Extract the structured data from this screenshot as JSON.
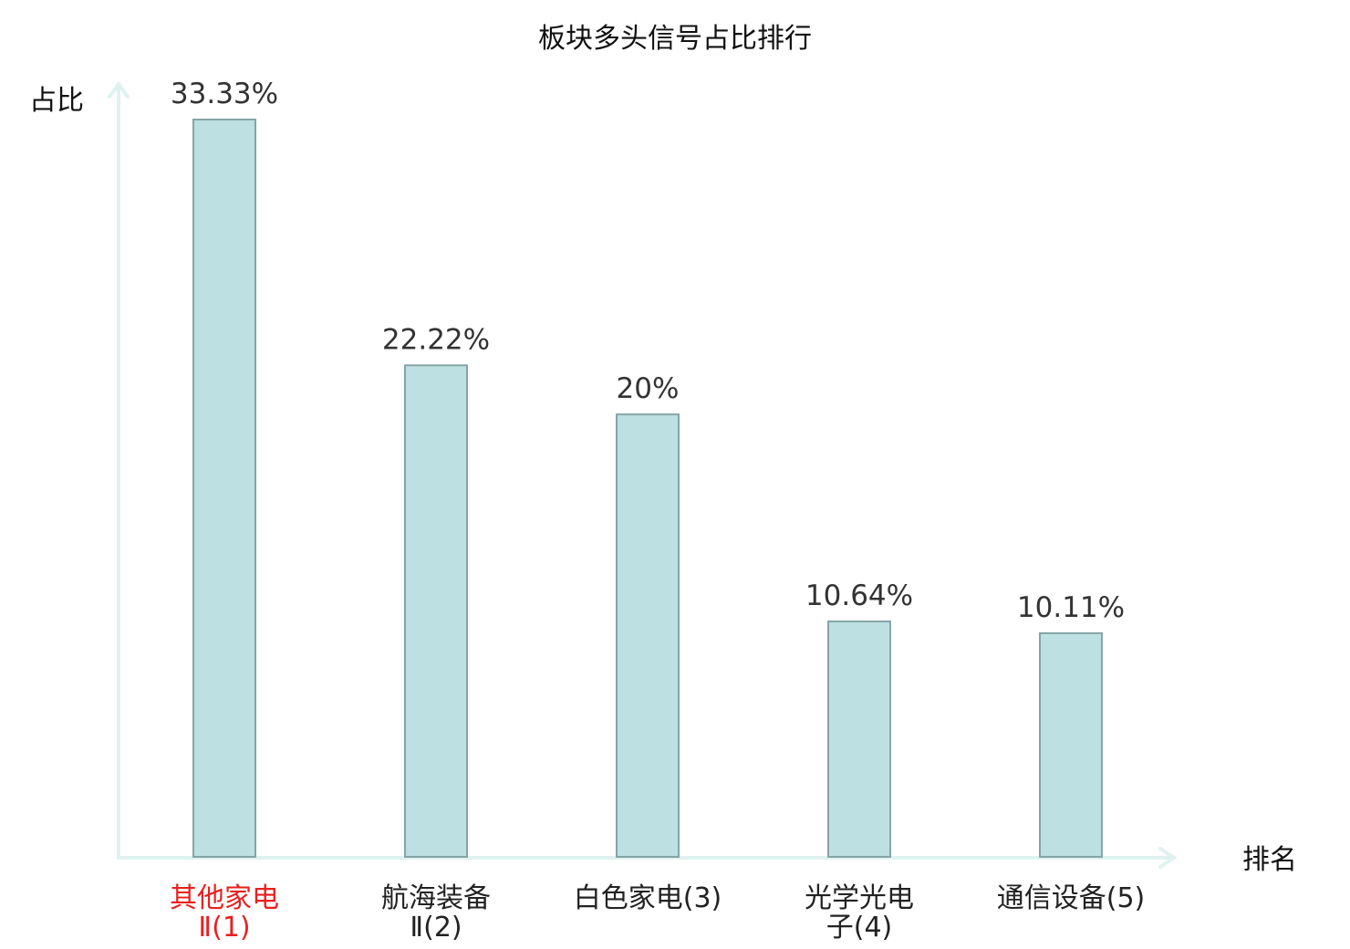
{
  "chart_data": {
    "type": "bar",
    "title": "板块多头信号占比排行",
    "ylabel": "占比",
    "xlabel": "排名",
    "categories": [
      [
        "其他家电",
        "Ⅱ(1)"
      ],
      [
        "航海装备",
        "Ⅱ(2)"
      ],
      [
        "白色家电(3)"
      ],
      [
        "光学光电",
        "子(4)"
      ],
      [
        "通信设备(5)"
      ]
    ],
    "values": [
      33.33,
      22.22,
      20,
      10.64,
      10.11
    ],
    "value_labels": [
      "33.33%",
      "22.22%",
      "20%",
      "10.64%",
      "10.11%"
    ],
    "ylim": [
      0,
      33.33
    ],
    "grid": false,
    "legend": "none",
    "highlight_index": 0,
    "colors": {
      "bar_fill": "#bde0e2",
      "bar_stroke": "#86a4a6",
      "axis": "#dff2ef",
      "highlight_label": "#e8201f",
      "label": "#333333"
    }
  }
}
